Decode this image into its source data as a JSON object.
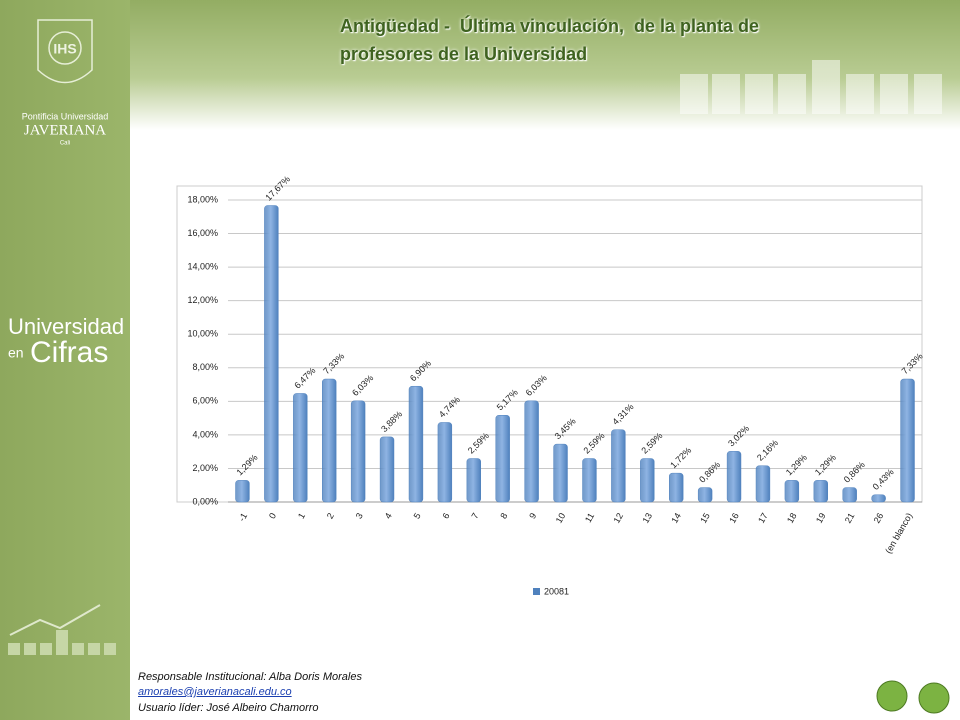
{
  "sidebar": {
    "crest": "IHS",
    "institution": [
      "Pontificia Universidad",
      "JAVERIANA",
      "Cali"
    ],
    "brand": [
      "Universidad",
      "en",
      "Cifras"
    ]
  },
  "chart_data": {
    "type": "bar",
    "title": [
      "Antigüedad -  Última vinculación,  de la planta de",
      "profesores de la Universidad"
    ],
    "categories": [
      "-1",
      "0",
      "1",
      "2",
      "3",
      "4",
      "5",
      "6",
      "7",
      "8",
      "9",
      "10",
      "11",
      "12",
      "13",
      "14",
      "15",
      "16",
      "17",
      "18",
      "19",
      "21",
      "26",
      "(en blanco)"
    ],
    "series": [
      {
        "name": "20081",
        "color": "#4f81bd",
        "values": [
          1.29,
          17.67,
          6.47,
          7.33,
          6.03,
          3.88,
          6.9,
          4.74,
          2.59,
          5.17,
          6.03,
          3.45,
          2.59,
          4.31,
          2.59,
          1.72,
          0.86,
          3.02,
          2.16,
          1.29,
          1.29,
          0.86,
          0.43,
          7.33
        ],
        "value_labels": [
          "1,29%",
          "17,67%",
          "6,47%",
          "7,33%",
          "6,03%",
          "3,88%",
          "6,90%",
          "4,74%",
          "2,59%",
          "5,17%",
          "6,03%",
          "3,45%",
          "2,59%",
          "4,31%",
          "2,59%",
          "1,72%",
          "0,86%",
          "3,02%",
          "2,16%",
          "1,29%",
          "1,29%",
          "0,86%",
          "0,43%",
          "7,33%"
        ]
      }
    ],
    "ylim": [
      0,
      18
    ],
    "yticks": [
      {
        "value": 0,
        "label": "0,00%"
      },
      {
        "value": 2,
        "label": "2,00%"
      },
      {
        "value": 4,
        "label": "4,00%"
      },
      {
        "value": 6,
        "label": "6,00%"
      },
      {
        "value": 8,
        "label": "8,00%"
      },
      {
        "value": 10,
        "label": "10,00%"
      },
      {
        "value": 12,
        "label": "12,00%"
      },
      {
        "value": 14,
        "label": "14,00%"
      },
      {
        "value": 16,
        "label": "16,00%"
      },
      {
        "value": 18,
        "label": "18,00%"
      }
    ],
    "grid": true,
    "legend": "bottom"
  },
  "footer": {
    "responsible": "Responsable Institucional: Alba Doris Morales",
    "email": "amorales@javerianacali.edu.co",
    "leader": "Usuario líder: José Albeiro Chamorro"
  }
}
